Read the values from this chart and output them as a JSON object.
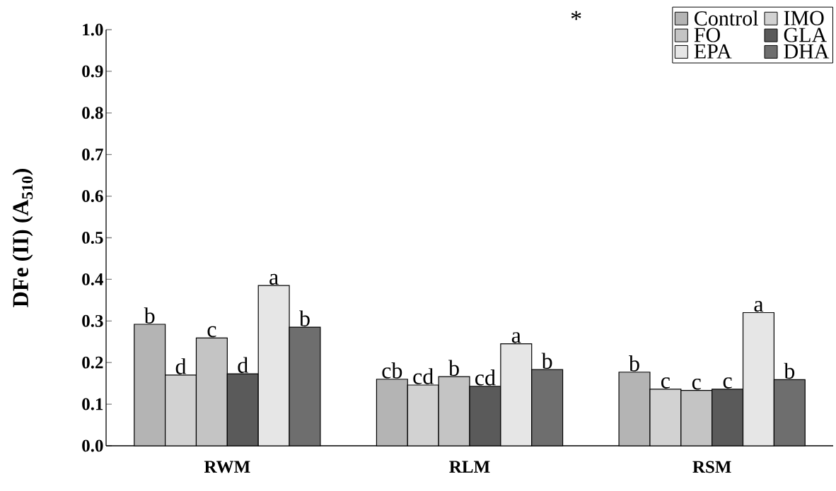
{
  "chart_data": {
    "type": "bar",
    "ylabel": "DFe (II) (A$_{510}$)",
    "categories": [
      "RWM",
      "RLM",
      "RSM"
    ],
    "series": [
      {
        "name": "Control",
        "color": "#b4b4b4",
        "values": [
          0.292,
          0.16,
          0.177
        ],
        "value_labels": [
          "b",
          "cb",
          "b"
        ]
      },
      {
        "name": "IMO",
        "color": "#d2d2d2",
        "values": [
          0.17,
          0.146,
          0.136
        ],
        "value_labels": [
          "d",
          "cd",
          "c"
        ]
      },
      {
        "name": "FO",
        "color": "#c4c4c4",
        "values": [
          0.259,
          0.166,
          0.133
        ],
        "value_labels": [
          "c",
          "b",
          "c"
        ]
      },
      {
        "name": "GLA",
        "color": "#5a5a5a",
        "values": [
          0.173,
          0.143,
          0.136
        ],
        "value_labels": [
          "d",
          "cd",
          "c"
        ]
      },
      {
        "name": "EPA",
        "color": "#e6e6e6",
        "values": [
          0.385,
          0.245,
          0.32
        ],
        "value_labels": [
          "a",
          "a",
          "a"
        ]
      },
      {
        "name": "DHA",
        "color": "#6e6e6e",
        "values": [
          0.285,
          0.183,
          0.159
        ],
        "value_labels": [
          "b",
          "b",
          "b"
        ]
      }
    ],
    "ylim": [
      0,
      1.0
    ],
    "yticks": [
      {
        "value": 0,
        "label": "0.0"
      },
      {
        "value": 0.1,
        "label": "0.1"
      },
      {
        "value": 0.2,
        "label": "0.2"
      },
      {
        "value": 0.3,
        "label": "0.3"
      },
      {
        "value": 0.4,
        "label": "0.4"
      },
      {
        "value": 0.5,
        "label": "0.5"
      },
      {
        "value": 0.6,
        "label": "0.6"
      },
      {
        "value": 0.7,
        "label": "0.7"
      },
      {
        "value": 0.8,
        "label": "0.8"
      },
      {
        "value": 0.9,
        "label": "0.9"
      },
      {
        "value": 1.0,
        "label": "1.0"
      }
    ],
    "grid": false,
    "legend": "top right",
    "annotations": [
      "*"
    ]
  }
}
